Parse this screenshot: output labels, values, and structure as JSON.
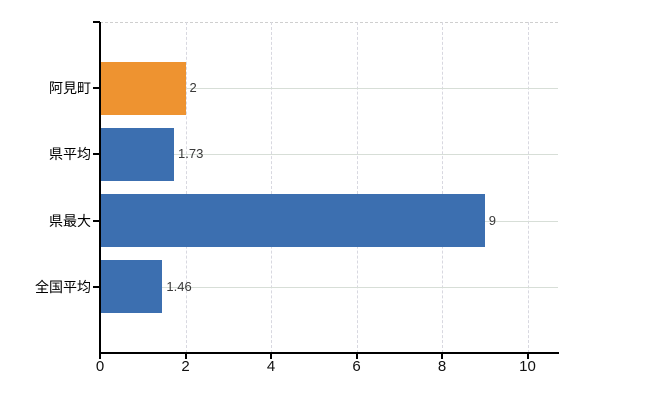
{
  "chart_data": {
    "type": "bar",
    "orientation": "horizontal",
    "title": "",
    "xlabel": "",
    "ylabel": "",
    "categories": [
      "阿見町",
      "県平均",
      "県最大",
      "全国平均"
    ],
    "values": [
      2,
      1.73,
      9,
      1.46
    ],
    "value_labels": [
      "2",
      "1.73",
      "9",
      "1.46"
    ],
    "bar_colors": [
      "#ee9330",
      "#3c6fb0",
      "#3c6fb0",
      "#3c6fb0"
    ],
    "x_ticks": [
      0,
      2,
      4,
      6,
      8,
      10
    ],
    "x_tick_labels": [
      "0",
      "2",
      "4",
      "6",
      "8",
      "10"
    ],
    "xlim": [
      0,
      10.7
    ],
    "grid": {
      "horizontal": "solid",
      "vertical": "dashed",
      "top_border": "dashed"
    },
    "legend": "none",
    "colors": {
      "bar_orange": "#ee9330",
      "bar_blue": "#3c6fb0",
      "axis": "#000000",
      "grid_horizontal": "#d7ded7",
      "grid_vertical": "#d8d8e0",
      "top_border": "#cfcfcf",
      "category_text": "#000000",
      "value_text": "#3a3a3a",
      "tick_text": "#111111",
      "background": "#ffffff"
    }
  }
}
